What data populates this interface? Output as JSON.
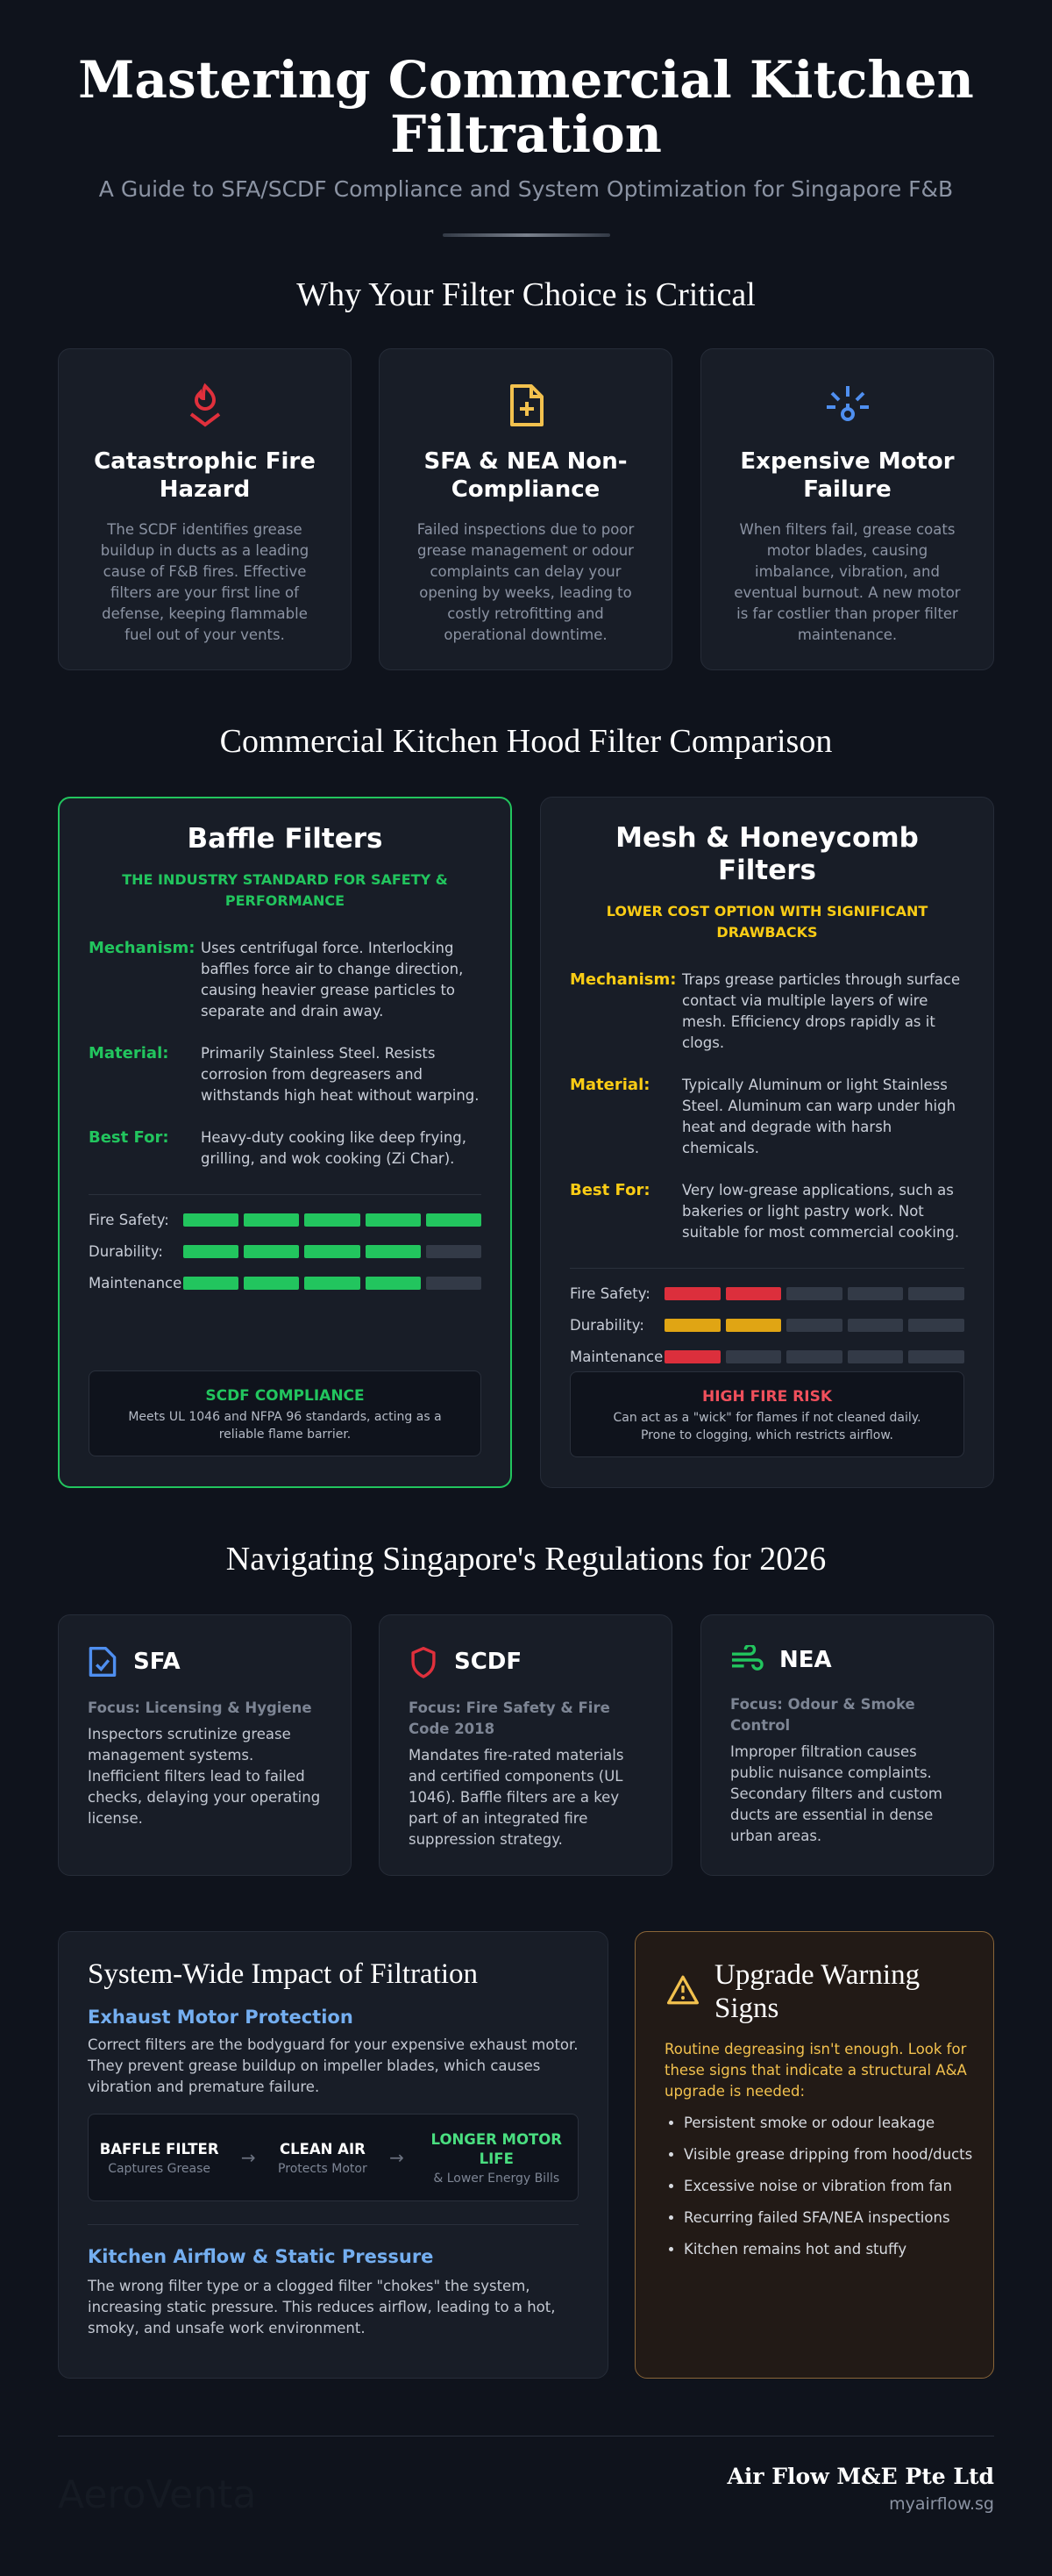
{
  "header": {
    "title": "Mastering Commercial Kitchen Filtration",
    "subtitle": "A Guide to SFA/SCDF Compliance and System Optimization for Singapore F&B"
  },
  "critical": {
    "heading": "Why Your Filter Choice is Critical",
    "cards": [
      {
        "title": "Catastrophic Fire Hazard",
        "text": "The SCDF identifies grease buildup in ducts as a leading cause of F&B fires. Effective filters are your first line of defense, keeping flammable fuel out of your vents."
      },
      {
        "title": "SFA & NEA Non-Compliance",
        "text": "Failed inspections due to poor grease management or odour complaints can delay your opening by weeks, leading to costly retrofitting and operational downtime."
      },
      {
        "title": "Expensive Motor Failure",
        "text": "When filters fail, grease coats motor blades, causing imbalance, vibration, and eventual burnout. A new motor is far costlier than proper filter maintenance."
      }
    ]
  },
  "comparison": {
    "heading": "Commercial Kitchen Hood Filter Comparison",
    "rating_scale": 5,
    "filters": [
      {
        "name": "Baffle Filters",
        "tagline": "THE INDUSTRY STANDARD FOR SAFETY & PERFORMANCE",
        "accent": "#22c55e",
        "details": [
          {
            "label": "Mechanism:",
            "text": "Uses centrifugal force. Interlocking baffles force air to change direction, causing heavier grease particles to separate and drain away."
          },
          {
            "label": "Material:",
            "text": "Primarily Stainless Steel. Resists corrosion from degreasers and withstands high heat without warping."
          },
          {
            "label": "Best For:",
            "text": "Heavy-duty cooking like deep frying, grilling, and wok cooking (Zi Char)."
          }
        ],
        "ratings": [
          {
            "label": "Fire Safety:",
            "score": 5,
            "color": "#22c55e"
          },
          {
            "label": "Durability:",
            "score": 4,
            "color": "#22c55e"
          },
          {
            "label": "Maintenance:",
            "score": 4,
            "color": "#22c55e"
          }
        ],
        "callout_title": "SCDF COMPLIANCE",
        "callout_text": "Meets UL 1046 and NFPA 96 standards, acting as a reliable flame barrier."
      },
      {
        "name": "Mesh & Honeycomb Filters",
        "tagline": "LOWER COST OPTION WITH SIGNIFICANT DRAWBACKS",
        "accent": "#facc15",
        "details": [
          {
            "label": "Mechanism:",
            "text": "Traps grease particles through surface contact via multiple layers of wire mesh. Efficiency drops rapidly as it clogs."
          },
          {
            "label": "Material:",
            "text": "Typically Aluminum or light Stainless Steel. Aluminum can warp under high heat and degrade with harsh chemicals."
          },
          {
            "label": "Best For:",
            "text": "Very low-grease applications, such as bakeries or light pastry work. Not suitable for most commercial cooking."
          }
        ],
        "ratings": [
          {
            "label": "Fire Safety:",
            "score": 2,
            "color": "#dc2f3c"
          },
          {
            "label": "Durability:",
            "score": 2,
            "color": "#e0a514"
          },
          {
            "label": "Maintenance:",
            "score": 1,
            "color": "#dc2f3c"
          }
        ],
        "callout_title": "HIGH FIRE RISK",
        "callout_text": "Can act as a \"wick\" for flames if not cleaned daily. Prone to clogging, which restricts airflow."
      }
    ]
  },
  "regulations": {
    "heading": "Navigating Singapore's Regulations for 2026",
    "cards": [
      {
        "agency": "SFA",
        "focus": "Focus: Licensing & Hygiene",
        "text": "Inspectors scrutinize grease management systems. Inefficient filters lead to failed checks, delaying your operating license."
      },
      {
        "agency": "SCDF",
        "focus": "Focus: Fire Safety & Fire Code 2018",
        "text": "Mandates fire-rated materials and certified components (UL 1046). Baffle filters are a key part of an integrated fire suppression strategy."
      },
      {
        "agency": "NEA",
        "focus": "Focus: Odour & Smoke Control",
        "text": "Improper filtration causes public nuisance complaints. Secondary filters and custom ducts are essential in dense urban areas."
      }
    ]
  },
  "impact": {
    "heading": "System-Wide Impact of Filtration",
    "motor_title": "Exhaust Motor Protection",
    "motor_text": "Correct filters are the bodyguard for your expensive exhaust motor. They prevent grease buildup on impeller blades, which causes vibration and premature failure.",
    "flow": [
      {
        "title": "BAFFLE FILTER",
        "sub": "Captures Grease"
      },
      {
        "title": "CLEAN AIR",
        "sub": "Protects Motor"
      },
      {
        "title": "LONGER MOTOR LIFE",
        "sub": "& Lower Energy Bills"
      }
    ],
    "airflow_title": "Kitchen Airflow & Static Pressure",
    "airflow_text": "The wrong filter type or a clogged filter \"chokes\" the system, increasing static pressure. This reduces airflow, leading to a hot, smoky, and unsafe work environment."
  },
  "warning": {
    "heading": "Upgrade Warning Signs",
    "intro": "Routine degreasing isn't enough. Look for these signs that indicate a structural A&A upgrade is needed:",
    "items": [
      "Persistent smoke or odour leakage",
      "Visible grease dripping from hood/ducts",
      "Excessive noise or vibration from fan",
      "Recurring failed SFA/NEA inspections",
      "Kitchen remains hot and stuffy"
    ]
  },
  "footer": {
    "brand": "AeroVenta",
    "company": "Air Flow M&E Pte Ltd",
    "url": "myairflow.sg"
  }
}
